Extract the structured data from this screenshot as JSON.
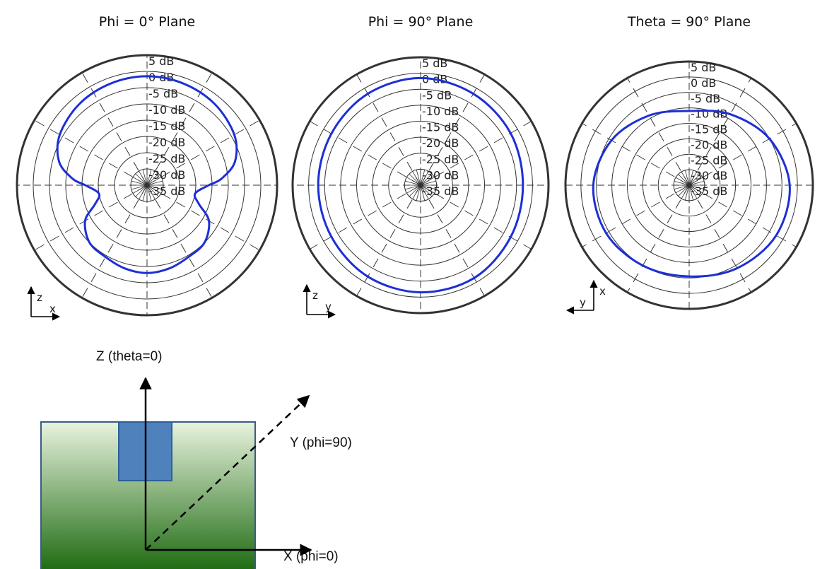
{
  "colors": {
    "trace": "#1d2fd6",
    "grid": "#333333",
    "board_top": "#e8f3de",
    "board_bottom": "#1f6b12",
    "patch": "#4f81bd"
  },
  "chart_data": [
    {
      "type": "polar",
      "title": "Phi = 0° Plane",
      "tick_labels": [
        "5 dB",
        "0 dB",
        "-5 dB",
        "-10 dB",
        "-15 dB",
        "-20 dB",
        "-25 dB",
        "-30 dB",
        "-35 dB"
      ],
      "rlim_db": [
        -35,
        5
      ],
      "axis_indicator": {
        "vertical": "z",
        "horizontal": "x",
        "horizontal_direction": "right"
      },
      "series": [
        {
          "angle_deg": [
            0,
            20,
            40,
            60,
            75,
            85,
            90,
            100,
            110,
            120,
            135,
            150,
            165,
            180,
            195,
            210,
            225,
            240,
            250,
            260,
            270,
            275,
            285,
            300,
            320,
            340
          ],
          "gain_db": [
            -1.5,
            -1.8,
            -2.5,
            -4,
            -7,
            -12,
            -16,
            -20,
            -18,
            -13,
            -10,
            -9.5,
            -8.5,
            -8,
            -8.5,
            -9.5,
            -10,
            -13,
            -18,
            -20,
            -16,
            -12,
            -7,
            -4,
            -2.5,
            -1.8
          ]
        }
      ]
    },
    {
      "type": "polar",
      "title": "Phi = 90° Plane",
      "tick_labels": [
        "5 dB",
        "0 dB",
        "-5 dB",
        "-10 dB",
        "-15 dB",
        "-20 dB",
        "-25 dB",
        "-30 dB",
        "-35 dB"
      ],
      "rlim_db": [
        -35,
        5
      ],
      "axis_indicator": {
        "vertical": "z",
        "horizontal": "y",
        "horizontal_direction": "right"
      },
      "series": [
        {
          "angle_deg": [
            0,
            30,
            60,
            90,
            120,
            150,
            180,
            210,
            240,
            270,
            300,
            330
          ],
          "gain_db": [
            -1.5,
            -2,
            -2.5,
            -3,
            -2.5,
            -1.5,
            -1.5,
            -2,
            -2.8,
            -3,
            -2.8,
            -2
          ]
        }
      ]
    },
    {
      "type": "polar",
      "title": "Theta = 90° Plane",
      "tick_labels": [
        "5 dB",
        "0 dB",
        "-5 dB",
        "-10 dB",
        "-15 dB",
        "-20 dB",
        "-25 dB",
        "-30 dB",
        "-35 dB"
      ],
      "rlim_db": [
        -35,
        5
      ],
      "axis_indicator": {
        "vertical": "x",
        "horizontal": "y",
        "horizontal_direction": "left"
      },
      "series": [
        {
          "angle_deg": [
            0,
            30,
            60,
            90,
            120,
            150,
            180,
            210,
            240,
            270,
            300,
            330
          ],
          "gain_db": [
            -11,
            -8.5,
            -5,
            -2.5,
            -2.5,
            -4,
            -5.5,
            -5,
            -4,
            -4,
            -6,
            -9
          ]
        }
      ]
    }
  ],
  "diagram": {
    "z_label": "Z (theta=0)",
    "y_label": "Y (phi=90)",
    "x_label": "X (phi=0)"
  }
}
